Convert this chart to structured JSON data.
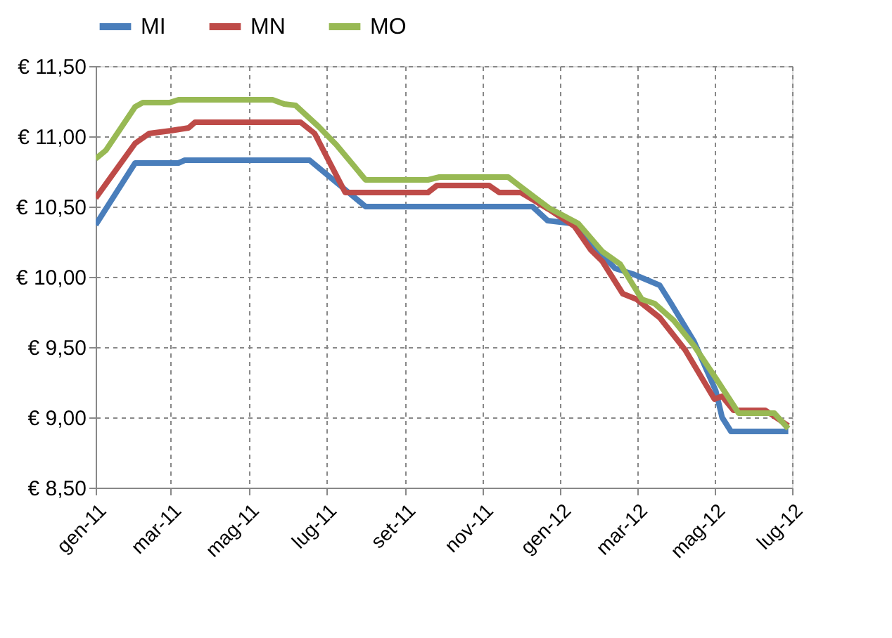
{
  "chart_data": {
    "type": "line",
    "legend": "top",
    "grid": true,
    "marker": "none",
    "line_style": "solid",
    "xlim": [
      "2011-01-01",
      "2012-07-01"
    ],
    "xticks": [
      {
        "value": "2011-01-01",
        "label": "gen-11"
      },
      {
        "value": "2011-03-01",
        "label": "mar-11"
      },
      {
        "value": "2011-05-01",
        "label": "mag-11"
      },
      {
        "value": "2011-07-01",
        "label": "lug-11"
      },
      {
        "value": "2011-09-01",
        "label": "set-11"
      },
      {
        "value": "2011-11-01",
        "label": "nov-11"
      },
      {
        "value": "2012-01-01",
        "label": "gen-12"
      },
      {
        "value": "2012-03-01",
        "label": "mar-12"
      },
      {
        "value": "2012-05-01",
        "label": "mag-12"
      },
      {
        "value": "2012-07-01",
        "label": "lug-12"
      }
    ],
    "ylim": [
      8.5,
      11.5
    ],
    "yticks": [
      {
        "value": 8.5,
        "label": "€ 8,50"
      },
      {
        "value": 9.0,
        "label": "€ 9,00"
      },
      {
        "value": 9.5,
        "label": "€ 9,50"
      },
      {
        "value": 10.0,
        "label": "€ 10,00"
      },
      {
        "value": 10.5,
        "label": "€ 10,50"
      },
      {
        "value": 11.0,
        "label": "€ 11,00"
      },
      {
        "value": 11.5,
        "label": "€ 11,50"
      }
    ],
    "series": [
      {
        "name": "MI",
        "color": "#4a7ebb",
        "x": [
          "2011-01-01",
          "2011-02-01",
          "2011-03-07",
          "2011-03-12",
          "2011-06-18",
          "2011-07-16",
          "2011-08-01",
          "2011-12-10",
          "2011-12-22",
          "2012-01-10",
          "2012-02-13",
          "2012-02-27",
          "2012-03-19",
          "2012-03-28",
          "2012-04-15",
          "2012-05-02",
          "2012-05-07",
          "2012-05-14",
          "2012-06-28"
        ],
        "values": [
          10.37,
          10.81,
          10.81,
          10.83,
          10.83,
          10.62,
          10.5,
          10.5,
          10.4,
          10.38,
          10.06,
          10.02,
          9.94,
          9.81,
          9.54,
          9.19,
          9.0,
          8.9,
          8.9
        ]
      },
      {
        "name": "MN",
        "color": "#be4b48",
        "x": [
          "2011-01-01",
          "2011-02-01",
          "2011-02-12",
          "2011-03-01",
          "2011-03-15",
          "2011-03-20",
          "2011-06-11",
          "2011-06-22",
          "2011-07-16",
          "2011-09-19",
          "2011-09-26",
          "2011-11-06",
          "2011-11-14",
          "2011-12-01",
          "2011-12-23",
          "2012-01-12",
          "2012-01-25",
          "2012-02-03",
          "2012-02-19",
          "2012-03-01",
          "2012-03-19",
          "2012-04-08",
          "2012-05-01",
          "2012-05-07",
          "2012-05-16",
          "2012-06-10",
          "2012-06-28"
        ],
        "values": [
          10.56,
          10.95,
          11.02,
          11.04,
          11.06,
          11.1,
          11.1,
          11.02,
          10.6,
          10.6,
          10.65,
          10.65,
          10.6,
          10.6,
          10.48,
          10.36,
          10.19,
          10.11,
          9.88,
          9.84,
          9.71,
          9.48,
          9.13,
          9.15,
          9.05,
          9.05,
          8.94
        ]
      },
      {
        "name": "MO",
        "color": "#98b954",
        "x": [
          "2011-01-01",
          "2011-01-09",
          "2011-02-01",
          "2011-02-07",
          "2011-02-28",
          "2011-03-07",
          "2011-05-20",
          "2011-05-29",
          "2011-06-07",
          "2011-06-25",
          "2011-07-09",
          "2011-08-01",
          "2011-09-19",
          "2011-09-28",
          "2011-11-21",
          "2011-12-01",
          "2011-12-23",
          "2012-01-15",
          "2012-02-03",
          "2012-02-17",
          "2012-03-05",
          "2012-03-15",
          "2012-03-30",
          "2012-04-15",
          "2012-05-02",
          "2012-05-20",
          "2012-06-17",
          "2012-06-28"
        ],
        "values": [
          10.84,
          10.9,
          11.21,
          11.24,
          11.24,
          11.26,
          11.26,
          11.23,
          11.22,
          11.07,
          10.94,
          10.69,
          10.69,
          10.71,
          10.71,
          10.64,
          10.49,
          10.38,
          10.18,
          10.09,
          9.84,
          9.81,
          9.69,
          9.51,
          9.28,
          9.03,
          9.03,
          8.92
        ]
      }
    ]
  }
}
